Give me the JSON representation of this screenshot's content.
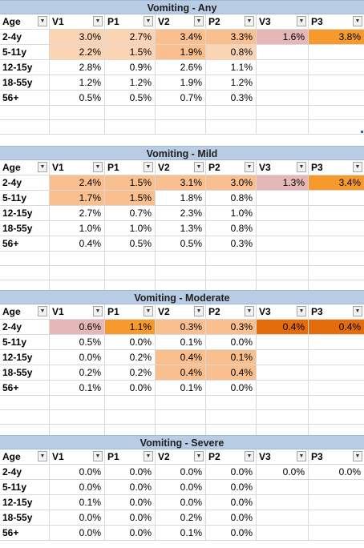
{
  "headers": [
    "Age",
    "V1",
    "P1",
    "V2",
    "P2",
    "V3",
    "P3"
  ],
  "tables": [
    {
      "title": "Vomiting - Any",
      "rows": [
        {
          "age": "2-4y",
          "cells": [
            "3.0%",
            "2.7%",
            "3.4%",
            "3.3%",
            "1.6%",
            "3.8%"
          ]
        },
        {
          "age": "5-11y",
          "cells": [
            "2.2%",
            "1.5%",
            "1.9%",
            "0.8%",
            "",
            ""
          ]
        },
        {
          "age": "12-15y",
          "cells": [
            "2.8%",
            "0.9%",
            "2.6%",
            "1.1%",
            "",
            ""
          ]
        },
        {
          "age": "18-55y",
          "cells": [
            "1.2%",
            "1.2%",
            "1.9%",
            "1.2%",
            "",
            ""
          ]
        },
        {
          "age": "56+",
          "cells": [
            "0.5%",
            "0.5%",
            "0.7%",
            "0.3%",
            "",
            ""
          ]
        }
      ]
    },
    {
      "title": "Vomiting - Mild",
      "rows": [
        {
          "age": "2-4y",
          "cells": [
            "2.4%",
            "1.5%",
            "3.1%",
            "3.0%",
            "1.3%",
            "3.4%"
          ]
        },
        {
          "age": "5-11y",
          "cells": [
            "1.7%",
            "1.5%",
            "1.8%",
            "0.8%",
            "",
            ""
          ]
        },
        {
          "age": "12-15y",
          "cells": [
            "2.7%",
            "0.7%",
            "2.3%",
            "1.0%",
            "",
            ""
          ]
        },
        {
          "age": "18-55y",
          "cells": [
            "1.0%",
            "1.0%",
            "1.3%",
            "0.8%",
            "",
            ""
          ]
        },
        {
          "age": "56+",
          "cells": [
            "0.4%",
            "0.5%",
            "0.5%",
            "0.3%",
            "",
            ""
          ]
        }
      ]
    },
    {
      "title": "Vomiting - Moderate",
      "rows": [
        {
          "age": "2-4y",
          "cells": [
            "0.6%",
            "1.1%",
            "0.3%",
            "0.3%",
            "0.4%",
            "0.4%"
          ]
        },
        {
          "age": "5-11y",
          "cells": [
            "0.5%",
            "0.0%",
            "0.1%",
            "0.0%",
            "",
            ""
          ]
        },
        {
          "age": "12-15y",
          "cells": [
            "0.0%",
            "0.2%",
            "0.4%",
            "0.1%",
            "",
            ""
          ]
        },
        {
          "age": "18-55y",
          "cells": [
            "0.2%",
            "0.2%",
            "0.4%",
            "0.4%",
            "",
            ""
          ]
        },
        {
          "age": "56+",
          "cells": [
            "0.1%",
            "0.0%",
            "0.1%",
            "0.0%",
            "",
            ""
          ]
        }
      ]
    },
    {
      "title": "Vomiting - Severe",
      "rows": [
        {
          "age": "2-4y",
          "cells": [
            "0.0%",
            "0.0%",
            "0.0%",
            "0.0%",
            "0.0%",
            "0.0%"
          ]
        },
        {
          "age": "5-11y",
          "cells": [
            "0.0%",
            "0.0%",
            "0.0%",
            "0.0%",
            "",
            ""
          ]
        },
        {
          "age": "12-15y",
          "cells": [
            "0.1%",
            "0.0%",
            "0.0%",
            "0.0%",
            "",
            ""
          ]
        },
        {
          "age": "18-55y",
          "cells": [
            "0.0%",
            "0.0%",
            "0.2%",
            "0.0%",
            "",
            ""
          ]
        },
        {
          "age": "56+",
          "cells": [
            "0.0%",
            "0.0%",
            "0.1%",
            "0.0%",
            "",
            ""
          ]
        }
      ]
    }
  ],
  "filter_icon": "dropdown-arrow",
  "colors": {
    "title_band": "#b8cce4",
    "peach": "#fbd4b4",
    "salmon": "#f9bf8f",
    "pink": "#e5b8b7",
    "orange": "#f79a2e",
    "dark_orange": "#e46c0a"
  }
}
